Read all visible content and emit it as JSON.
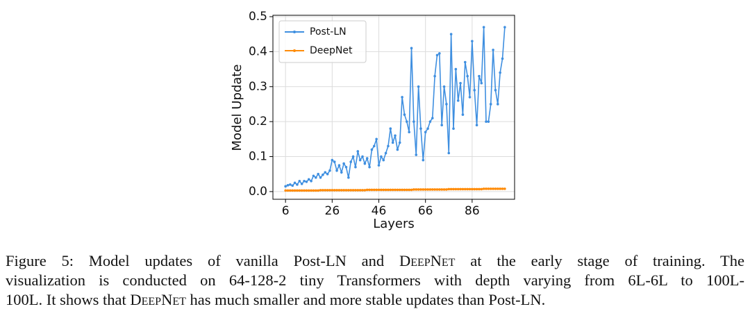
{
  "chart_data": {
    "type": "line",
    "xlabel": "Layers",
    "ylabel": "Model Update",
    "x": [
      6,
      7,
      8,
      9,
      10,
      11,
      12,
      13,
      14,
      15,
      16,
      17,
      18,
      19,
      20,
      21,
      22,
      23,
      24,
      25,
      26,
      27,
      28,
      29,
      30,
      31,
      32,
      33,
      34,
      35,
      36,
      37,
      38,
      39,
      40,
      41,
      42,
      43,
      44,
      45,
      46,
      47,
      48,
      49,
      50,
      51,
      52,
      53,
      54,
      55,
      56,
      57,
      58,
      59,
      60,
      61,
      62,
      63,
      64,
      65,
      66,
      67,
      68,
      69,
      70,
      71,
      72,
      73,
      74,
      75,
      76,
      77,
      78,
      79,
      80,
      81,
      82,
      83,
      84,
      85,
      86,
      87,
      88,
      89,
      90,
      91,
      92,
      93,
      94,
      95,
      96,
      97,
      98,
      99,
      100
    ],
    "series": [
      {
        "name": "Post-LN",
        "color": "#3f8fe0",
        "values": [
          0.015,
          0.018,
          0.02,
          0.017,
          0.025,
          0.02,
          0.03,
          0.022,
          0.03,
          0.028,
          0.035,
          0.03,
          0.045,
          0.04,
          0.05,
          0.04,
          0.048,
          0.055,
          0.05,
          0.06,
          0.09,
          0.085,
          0.06,
          0.075,
          0.055,
          0.08,
          0.07,
          0.04,
          0.085,
          0.1,
          0.07,
          0.115,
          0.09,
          0.1,
          0.08,
          0.095,
          0.07,
          0.12,
          0.13,
          0.15,
          0.075,
          0.1,
          0.09,
          0.11,
          0.13,
          0.18,
          0.14,
          0.16,
          0.12,
          0.14,
          0.27,
          0.22,
          0.2,
          0.17,
          0.41,
          0.2,
          0.105,
          0.3,
          0.18,
          0.09,
          0.17,
          0.18,
          0.2,
          0.21,
          0.33,
          0.39,
          0.395,
          0.19,
          0.3,
          0.25,
          0.11,
          0.45,
          0.18,
          0.35,
          0.26,
          0.31,
          0.22,
          0.37,
          0.33,
          0.27,
          0.43,
          0.29,
          0.19,
          0.33,
          0.31,
          0.47,
          0.2,
          0.2,
          0.25,
          0.405,
          0.29,
          0.25,
          0.34,
          0.38,
          0.47
        ]
      },
      {
        "name": "DeepNet",
        "color": "#ff8c0a",
        "values": [
          0.003,
          0.003,
          0.003,
          0.003,
          0.003,
          0.003,
          0.003,
          0.003,
          0.003,
          0.003,
          0.003,
          0.003,
          0.003,
          0.003,
          0.003,
          0.004,
          0.004,
          0.004,
          0.004,
          0.004,
          0.004,
          0.004,
          0.004,
          0.004,
          0.004,
          0.004,
          0.004,
          0.004,
          0.004,
          0.004,
          0.004,
          0.004,
          0.004,
          0.004,
          0.004,
          0.005,
          0.005,
          0.005,
          0.005,
          0.005,
          0.005,
          0.005,
          0.005,
          0.005,
          0.005,
          0.005,
          0.005,
          0.005,
          0.005,
          0.005,
          0.005,
          0.005,
          0.005,
          0.005,
          0.005,
          0.006,
          0.006,
          0.006,
          0.006,
          0.006,
          0.006,
          0.006,
          0.006,
          0.006,
          0.006,
          0.006,
          0.006,
          0.006,
          0.006,
          0.006,
          0.007,
          0.007,
          0.007,
          0.007,
          0.007,
          0.007,
          0.007,
          0.007,
          0.007,
          0.007,
          0.007,
          0.007,
          0.007,
          0.007,
          0.007,
          0.008,
          0.008,
          0.008,
          0.008,
          0.008,
          0.008,
          0.008,
          0.008,
          0.008,
          0.008
        ]
      }
    ],
    "xlim": [
      0.6,
      104.2
    ],
    "ylim": [
      -0.022,
      0.504
    ],
    "xticks": [
      6,
      26,
      46,
      66,
      86
    ],
    "yticks": [
      {
        "value": 0,
        "label": "0.0"
      },
      0.1,
      0.2,
      0.3,
      0.4,
      0.5
    ],
    "grid": true,
    "legend": "upper left"
  },
  "caption": {
    "lines": [
      [
        "Figure 5: Model updates of vanilla Post-LN and ",
        "DeepNet",
        " at the early stage of training.  The"
      ],
      [
        "visualization is conducted on 64-128-2 tiny Transformers with depth varying from 6L-6L to 100L-"
      ],
      [
        "100L. It shows that ",
        "DeepNet",
        " has much smaller and more stable updates than Post-LN."
      ]
    ]
  }
}
